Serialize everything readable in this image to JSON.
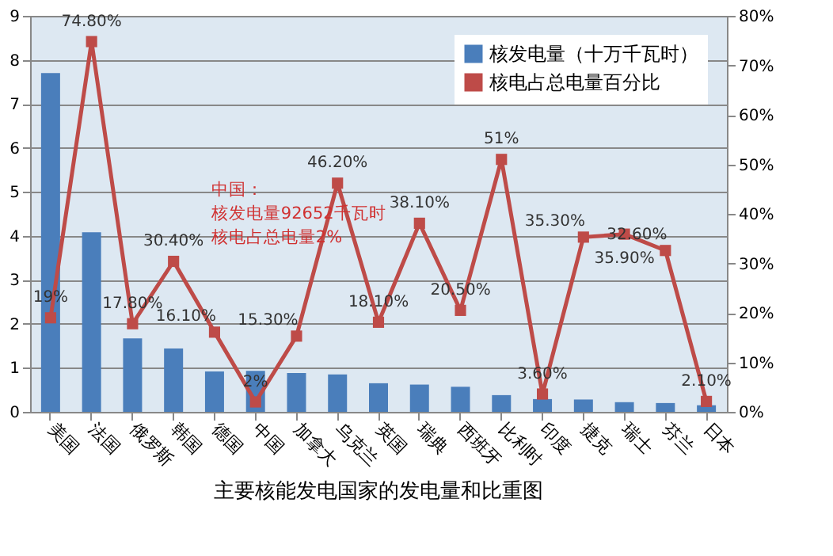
{
  "chart_data": {
    "type": "bar",
    "title": "主要核能发电国家的发电量和比重图",
    "categories": [
      "美国",
      "法国",
      "俄罗斯",
      "韩国",
      "德国",
      "中国",
      "加拿大",
      "乌克兰",
      "英国",
      "瑞典",
      "西班牙",
      "比利时",
      "印度",
      "捷克",
      "瑞士",
      "芬兰",
      "日本"
    ],
    "series": [
      {
        "name": "核发电量（十万千瓦时）",
        "color": "#4a7ebb",
        "values": [
          7.7,
          4.08,
          1.67,
          1.44,
          0.92,
          0.93,
          0.88,
          0.85,
          0.65,
          0.62,
          0.57,
          0.38,
          0.29,
          0.28,
          0.22,
          0.2,
          0.15
        ]
      },
      {
        "name": "核电占总电量百分比",
        "type": "line",
        "axis": "y2",
        "color": "#be4b48",
        "marker": "square",
        "line_style": "solid",
        "values": [
          19,
          74.8,
          17.8,
          30.4,
          16.1,
          2,
          15.3,
          46.2,
          18.1,
          38.1,
          20.5,
          51,
          3.6,
          35.3,
          35.9,
          32.6,
          2.1
        ],
        "value_labels": [
          "19%",
          "74.80%",
          "17.80%",
          "30.40%",
          "16.10%",
          "2%",
          "15.30%",
          "46.20%",
          "18.10%",
          "38.10%",
          "20.50%",
          "51%",
          "3.60%",
          "35.30%",
          "35.90%",
          "32.60%",
          "2.10%"
        ]
      }
    ],
    "ylim": [
      0,
      9
    ],
    "yticks": [
      0,
      1,
      2,
      3,
      4,
      5,
      6,
      7,
      8,
      9
    ],
    "y2lim": [
      0,
      80
    ],
    "y2ticks": [
      {
        "value": 0,
        "label": "0%"
      },
      {
        "value": 10,
        "label": "10%"
      },
      {
        "value": 20,
        "label": "20%"
      },
      {
        "value": 30,
        "label": "30%"
      },
      {
        "value": 40,
        "label": "40%"
      },
      {
        "value": 50,
        "label": "50%"
      },
      {
        "value": 60,
        "label": "60%"
      },
      {
        "value": 70,
        "label": "70%"
      },
      {
        "value": 80,
        "label": "80%"
      }
    ],
    "annotations": [
      "中国：",
      "核发电量92652千瓦时",
      "核电占总电量2%"
    ],
    "grid": "y",
    "legend": "top right"
  }
}
